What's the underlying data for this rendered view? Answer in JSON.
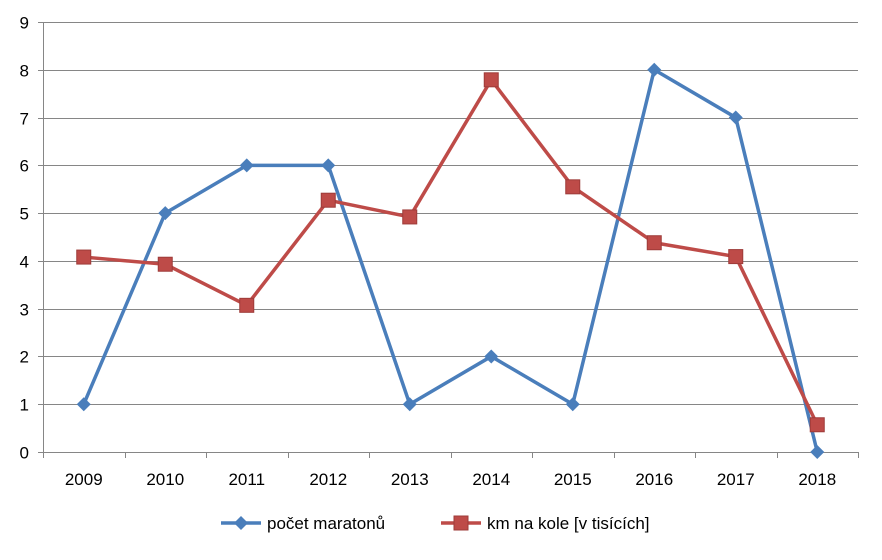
{
  "chart_data": {
    "type": "line",
    "categories": [
      "2009",
      "2010",
      "2011",
      "2012",
      "2013",
      "2014",
      "2015",
      "2016",
      "2017",
      "2018"
    ],
    "ylim": [
      0,
      9
    ],
    "yticks": [
      0,
      1,
      2,
      3,
      4,
      5,
      6,
      7,
      8,
      9
    ],
    "grid": true,
    "legend_position": "bottom",
    "series": [
      {
        "name": "počet maratonů",
        "color": "#4a7ebb",
        "marker": "diamond",
        "values": [
          1,
          5,
          6,
          6,
          1,
          2,
          1,
          8,
          7,
          0
        ]
      },
      {
        "name": "km na kole [v tisících]",
        "color": "#be4b48",
        "marker": "square",
        "values": [
          4.08,
          3.93,
          3.07,
          5.27,
          4.92,
          7.79,
          5.55,
          4.38,
          4.09,
          0.57
        ]
      }
    ]
  }
}
